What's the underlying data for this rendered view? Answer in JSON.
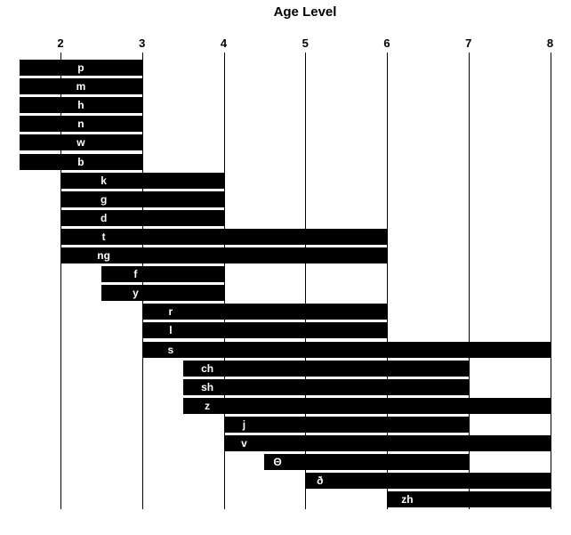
{
  "title": "Age Level",
  "colors": {
    "background": "#ffffff",
    "bar": "#000000",
    "bar_label": "#ffffff",
    "gridline": "#000000",
    "text": "#000000"
  },
  "chart_data": {
    "type": "bar",
    "subtype": "horizontal-range-bars",
    "title": "Age Level",
    "xlabel": "Age Level",
    "ylabel": "",
    "xlim": [
      1.5,
      8
    ],
    "x_ticks": [
      2,
      3,
      4,
      5,
      6,
      7,
      8
    ],
    "grid": "vertical-gridlines-on",
    "legend": "none",
    "categories": [
      "p",
      "m",
      "h",
      "n",
      "w",
      "b",
      "k",
      "g",
      "d",
      "t",
      "ng",
      "f",
      "y",
      "r",
      "l",
      "s",
      "ch",
      "sh",
      "z",
      "j",
      "v",
      "Θ",
      "ð",
      "zh"
    ],
    "bars": [
      {
        "phoneme": "p",
        "start": 1.5,
        "end": 3,
        "label_x": 2.25
      },
      {
        "phoneme": "m",
        "start": 1.5,
        "end": 3,
        "label_x": 2.25
      },
      {
        "phoneme": "h",
        "start": 1.5,
        "end": 3,
        "label_x": 2.25
      },
      {
        "phoneme": "n",
        "start": 1.5,
        "end": 3,
        "label_x": 2.25
      },
      {
        "phoneme": "w",
        "start": 1.5,
        "end": 3,
        "label_x": 2.25
      },
      {
        "phoneme": "b",
        "start": 1.5,
        "end": 3,
        "label_x": 2.25
      },
      {
        "phoneme": "k",
        "start": 2,
        "end": 4,
        "label_x": 2.53
      },
      {
        "phoneme": "g",
        "start": 2,
        "end": 4,
        "label_x": 2.53
      },
      {
        "phoneme": "d",
        "start": 2,
        "end": 4,
        "label_x": 2.53
      },
      {
        "phoneme": "t",
        "start": 2,
        "end": 6,
        "label_x": 2.53
      },
      {
        "phoneme": "ng",
        "start": 2,
        "end": 6,
        "label_x": 2.53
      },
      {
        "phoneme": "f",
        "start": 2.5,
        "end": 4,
        "label_x": 2.92
      },
      {
        "phoneme": "y",
        "start": 2.5,
        "end": 4,
        "label_x": 2.92
      },
      {
        "phoneme": "r",
        "start": 3,
        "end": 6,
        "label_x": 3.35
      },
      {
        "phoneme": "l",
        "start": 3,
        "end": 6,
        "label_x": 3.35
      },
      {
        "phoneme": "s",
        "start": 3,
        "end": 8,
        "label_x": 3.35
      },
      {
        "phoneme": "ch",
        "start": 3.5,
        "end": 7,
        "label_x": 3.8
      },
      {
        "phoneme": "sh",
        "start": 3.5,
        "end": 7,
        "label_x": 3.8
      },
      {
        "phoneme": "z",
        "start": 3.5,
        "end": 8,
        "label_x": 3.8
      },
      {
        "phoneme": "j",
        "start": 4,
        "end": 7,
        "label_x": 4.25
      },
      {
        "phoneme": "v",
        "start": 4,
        "end": 8,
        "label_x": 4.25
      },
      {
        "phoneme": "Θ",
        "start": 4.5,
        "end": 7,
        "label_x": 4.66
      },
      {
        "phoneme": "ð",
        "start": 5,
        "end": 8,
        "label_x": 5.18
      },
      {
        "phoneme": "zh",
        "start": 6,
        "end": 8,
        "label_x": 6.25
      }
    ]
  }
}
